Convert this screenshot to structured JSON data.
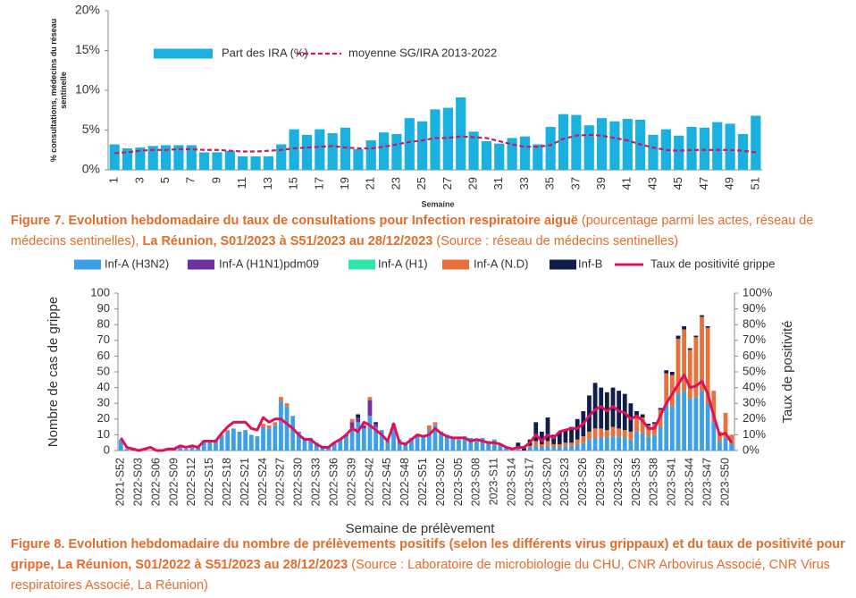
{
  "chart_data": [
    {
      "type": "bar",
      "x_label": "Semaine",
      "y_label": "% consultations, médecins du réseau sentinelle",
      "categories": [
        "1",
        null,
        "3",
        null,
        "5",
        null,
        "7",
        null,
        "9",
        null,
        "11",
        null,
        "13",
        null,
        "15",
        null,
        "17",
        null,
        "19",
        null,
        "21",
        null,
        "23",
        null,
        "25",
        null,
        "27",
        null,
        "29",
        null,
        "31",
        null,
        "33",
        null,
        "35",
        null,
        "37",
        null,
        "39",
        null,
        "41",
        null,
        "43",
        null,
        "45",
        null,
        "47",
        null,
        "49",
        null,
        "51"
      ],
      "series": [
        {
          "name": "Part des IRA (%)",
          "color": "#1ab0e0",
          "values": [
            3.2,
            2.7,
            2.8,
            3.0,
            3.1,
            3.1,
            3.1,
            2.2,
            2.2,
            2.4,
            1.7,
            1.7,
            1.7,
            3.2,
            5.1,
            4.4,
            5.1,
            4.6,
            5.3,
            2.6,
            3.7,
            4.7,
            4.5,
            6.5,
            6.1,
            7.6,
            7.8,
            9.1,
            4.8,
            3.6,
            3.3,
            4.0,
            4.2,
            3.2,
            5.4,
            7.0,
            6.9,
            5.6,
            6.5,
            6.1,
            6.4,
            6.3,
            4.4,
            5.1,
            4.3,
            5.4,
            5.3,
            6.0,
            5.8,
            4.5,
            6.8
          ]
        },
        {
          "name": "moyenne SG/IRA 2013-2022",
          "color": "#d0185a",
          "type": "line",
          "dashed": true,
          "values": [
            2.1,
            2.2,
            2.4,
            2.5,
            2.5,
            2.6,
            2.6,
            2.5,
            2.5,
            2.4,
            2.3,
            2.3,
            2.4,
            2.5,
            2.7,
            2.8,
            2.9,
            3.0,
            2.8,
            2.7,
            2.7,
            2.9,
            3.2,
            3.5,
            3.7,
            4.0,
            4.0,
            4.2,
            4.1,
            4.0,
            3.6,
            3.2,
            2.9,
            2.9,
            3.1,
            3.9,
            4.3,
            4.4,
            4.3,
            4.0,
            3.7,
            3.2,
            2.8,
            2.5,
            2.4,
            2.5,
            2.5,
            2.5,
            2.5,
            2.4,
            2.2
          ]
        }
      ],
      "ylim": [
        0,
        20
      ],
      "yticks": [
        {
          "value": 0,
          "label": "0%"
        },
        {
          "value": 5,
          "label": "5%"
        },
        {
          "value": 10,
          "label": "10%"
        },
        {
          "value": 15,
          "label": "15%"
        },
        {
          "value": 20,
          "label": "20%"
        }
      ],
      "grid": false
    },
    {
      "type": "stacked_bar",
      "x_label": "Semaine de prélèvement",
      "y_label": "Nombre de cas de grippe",
      "y2_label": "Taux de positivité",
      "categories": [
        "2021-S52",
        null,
        null,
        "2022-S03",
        null,
        null,
        "2022-S06",
        null,
        null,
        "2022-S09",
        null,
        null,
        "2022-S12",
        null,
        null,
        "2022-S15",
        null,
        null,
        "2022-S18",
        null,
        null,
        "2022-S21",
        null,
        null,
        "2022-S24",
        null,
        null,
        "2022-S27",
        null,
        null,
        "2022-S30",
        null,
        null,
        "2022-S33",
        null,
        null,
        "2022-S36",
        null,
        null,
        "2022-S39",
        null,
        null,
        "2022-S42",
        null,
        null,
        "2022-S45",
        null,
        null,
        "2022-S48",
        null,
        null,
        "2022-S51",
        null,
        null,
        "2023-S02",
        null,
        null,
        "2023-S05",
        null,
        null,
        "2023-S08",
        null,
        null,
        "2023-S11",
        null,
        null,
        "2023-S14",
        null,
        null,
        "2023-S17",
        null,
        null,
        "2023-S20",
        null,
        null,
        "2023-S23",
        null,
        null,
        "2023-S26",
        null,
        null,
        "2023-S29",
        null,
        null,
        "2023-S32",
        null,
        null,
        "2023-S35",
        null,
        null,
        "2023-S38",
        null,
        null,
        "2023-S41",
        null,
        null,
        "2023-S44",
        null,
        null,
        "2023-S47",
        null,
        null,
        "2023-S50",
        null
      ],
      "series": [
        {
          "name": "Inf-A (H3N2)",
          "color": "#3d9fe6",
          "values": [
            7,
            1,
            1,
            0,
            1,
            0,
            0,
            0,
            1,
            1,
            2,
            1,
            3,
            2,
            6,
            6,
            7,
            9,
            12,
            14,
            12,
            13,
            10,
            9,
            15,
            14,
            16,
            31,
            28,
            22,
            12,
            8,
            8,
            5,
            3,
            2,
            5,
            7,
            9,
            14,
            18,
            14,
            22,
            15,
            13,
            6,
            15,
            7,
            5,
            8,
            10,
            9,
            13,
            16,
            12,
            10,
            8,
            7,
            9,
            8,
            6,
            8,
            6,
            7,
            4,
            2,
            1,
            1,
            0,
            2,
            3,
            2,
            3,
            2,
            2,
            3,
            3,
            4,
            5,
            7,
            8,
            8,
            8,
            9,
            9,
            8,
            7,
            12,
            11,
            9,
            10,
            15,
            30,
            28,
            36,
            38,
            33,
            34,
            38,
            30,
            18,
            6,
            8,
            4
          ]
        },
        {
          "name": "Inf-A  (H1N1)pdm09",
          "color": "#7030a0",
          "values": [
            0,
            0,
            0,
            0,
            0,
            0,
            0,
            0,
            0,
            0,
            0,
            0,
            0,
            0,
            0,
            0,
            0,
            0,
            0,
            0,
            0,
            0,
            0,
            0,
            0,
            0,
            0,
            0,
            0,
            0,
            0,
            0,
            0,
            0,
            0,
            0,
            0,
            0,
            1,
            4,
            3,
            2,
            10,
            2,
            0,
            0,
            0,
            0,
            0,
            0,
            0,
            0,
            0,
            0,
            0,
            0,
            0,
            0,
            0,
            0,
            0,
            0,
            0,
            0,
            0,
            0,
            0,
            0,
            0,
            0,
            0,
            0,
            0,
            0,
            0,
            0,
            0,
            0,
            0,
            0,
            0,
            0,
            0,
            0,
            0,
            0,
            0,
            0,
            0,
            0,
            0,
            0,
            0,
            0,
            0,
            0,
            0,
            0,
            0,
            0,
            0,
            0,
            0,
            0
          ]
        },
        {
          "name": "Inf-A (H1)",
          "color": "#2ee8a8",
          "values": [
            0,
            0,
            0,
            0,
            0,
            0,
            0,
            0,
            0,
            0,
            0,
            0,
            0,
            0,
            0,
            0,
            0,
            0,
            0,
            0,
            0,
            0,
            0,
            0,
            0,
            0,
            0,
            0,
            0,
            0,
            0,
            0,
            0,
            0,
            0,
            0,
            0,
            0,
            0,
            0,
            0,
            0,
            0,
            0,
            0,
            0,
            0,
            0,
            0,
            0,
            0,
            0,
            0,
            0,
            0,
            0,
            0,
            0,
            0,
            0,
            0,
            0,
            0,
            0,
            0,
            0,
            0,
            0,
            0,
            0,
            0,
            0,
            0,
            0,
            0,
            0,
            0,
            0,
            0,
            0,
            0,
            0,
            0,
            0,
            0,
            0,
            0,
            0,
            0,
            0,
            0,
            0,
            0,
            0,
            0,
            0,
            0,
            0,
            0,
            0,
            0,
            0,
            0,
            0
          ]
        },
        {
          "name": "Inf-A (N.D)",
          "color": "#e8703a",
          "values": [
            0,
            0,
            0,
            0,
            0,
            0,
            0,
            0,
            0,
            0,
            0,
            0,
            0,
            0,
            0,
            0,
            0,
            1,
            1,
            0,
            0,
            0,
            0,
            0,
            2,
            2,
            2,
            3,
            2,
            0,
            0,
            0,
            0,
            0,
            0,
            0,
            0,
            0,
            0,
            2,
            0,
            0,
            2,
            0,
            0,
            0,
            2,
            0,
            0,
            0,
            0,
            0,
            3,
            2,
            0,
            0,
            0,
            0,
            0,
            0,
            0,
            0,
            0,
            0,
            0,
            0,
            0,
            1,
            0,
            1,
            3,
            2,
            3,
            2,
            2,
            2,
            2,
            3,
            4,
            5,
            6,
            6,
            5,
            6,
            5,
            5,
            5,
            10,
            10,
            7,
            7,
            11,
            19,
            20,
            35,
            39,
            31,
            38,
            47,
            48,
            20,
            6,
            16,
            6
          ]
        },
        {
          "name": "Inf-B",
          "color": "#0f1e4a",
          "values": [
            0,
            0,
            0,
            0,
            0,
            0,
            0,
            0,
            0,
            0,
            0,
            0,
            0,
            0,
            0,
            0,
            0,
            0,
            0,
            0,
            0,
            0,
            0,
            0,
            0,
            0,
            0,
            0,
            0,
            0,
            0,
            0,
            0,
            0,
            0,
            0,
            0,
            0,
            0,
            0,
            2,
            0,
            0,
            1,
            0,
            0,
            0,
            0,
            0,
            0,
            0,
            0,
            0,
            0,
            0,
            0,
            0,
            0,
            0,
            0,
            0,
            0,
            0,
            0,
            0,
            0,
            0,
            3,
            2,
            4,
            12,
            8,
            15,
            6,
            8,
            8,
            10,
            13,
            16,
            23,
            29,
            26,
            24,
            25,
            24,
            23,
            18,
            3,
            2,
            1,
            1,
            1,
            2,
            2,
            2,
            2,
            1,
            1,
            1,
            1,
            0,
            0,
            0,
            0
          ]
        },
        {
          "name": "Taux de positivité grippe",
          "color": "#e0105a",
          "type": "line",
          "axis": "y2",
          "values": [
            8,
            2,
            1,
            0,
            1,
            2,
            0,
            0,
            1,
            1,
            3,
            2,
            3,
            2,
            6,
            6,
            6,
            11,
            15,
            18,
            18,
            18,
            14,
            13,
            21,
            18,
            20,
            20,
            17,
            14,
            10,
            7,
            7,
            4,
            2,
            2,
            5,
            7,
            10,
            14,
            12,
            18,
            16,
            13,
            10,
            6,
            17,
            5,
            4,
            7,
            10,
            9,
            10,
            14,
            11,
            9,
            8,
            8,
            8,
            6,
            7,
            6,
            5,
            5,
            4,
            2,
            1,
            2,
            2,
            5,
            10,
            6,
            10,
            8,
            12,
            13,
            14,
            14,
            17,
            22,
            26,
            28,
            25,
            28,
            25,
            24,
            20,
            22,
            19,
            14,
            14,
            22,
            30,
            36,
            42,
            48,
            40,
            41,
            44,
            36,
            22,
            10,
            11,
            5
          ]
        }
      ],
      "ylim": [
        0,
        100
      ],
      "yticks": [
        0,
        10,
        20,
        30,
        40,
        50,
        60,
        70,
        80,
        90,
        100
      ],
      "y2lim": [
        0,
        100
      ],
      "y2ticks": [
        {
          "value": 0,
          "label": "0%"
        },
        {
          "value": 10,
          "label": "10%"
        },
        {
          "value": 20,
          "label": "20%"
        },
        {
          "value": 30,
          "label": "30%"
        },
        {
          "value": 40,
          "label": "40%"
        },
        {
          "value": 50,
          "label": "50%"
        },
        {
          "value": 60,
          "label": "60%"
        },
        {
          "value": 70,
          "label": "70%"
        },
        {
          "value": 80,
          "label": "80%"
        },
        {
          "value": 90,
          "label": "90%"
        },
        {
          "value": 100,
          "label": "100%"
        }
      ],
      "grid": false
    }
  ],
  "figure_captions": [
    [
      {
        "text": "Figure 7. Evolution hebdomadaire du taux de consultations pour Infection respiratoire aiguë",
        "bold": true
      },
      {
        "text": " (pourcentage parmi les actes, réseau de médecins sentinelles), ",
        "bold": false
      },
      {
        "text": "La Réunion, S01/2023 à S51/2023 au 28/12/2023",
        "bold": true
      },
      {
        "text": " (Source : réseau de médecins sentinelles)",
        "bold": false
      }
    ],
    [
      {
        "text": "Figure 8. Evolution hebdomadaire du nombre de prélèvements positifs (selon les différents virus grippaux) et du taux de positivité pour grippe, La Réunion, S01/2022 à S51/2023 au 28/12/2023",
        "bold": true
      },
      {
        "text": " (Source : Laboratoire de microbiologie du CHU, CNR Arbovirus Associé, CNR Virus respiratoires Associé, La Réunion)",
        "bold": false
      }
    ]
  ]
}
